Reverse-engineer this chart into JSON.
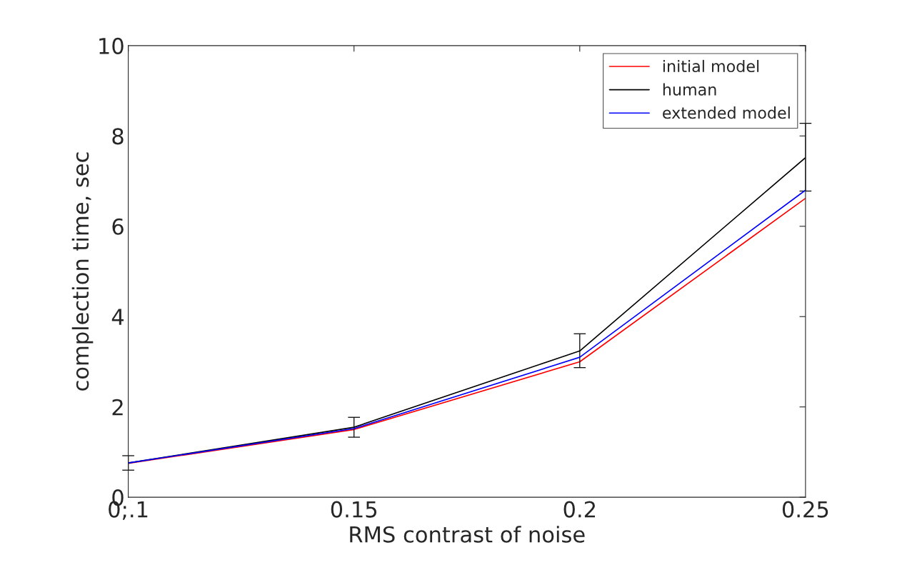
{
  "chart_data": {
    "type": "line",
    "xlabel": "RMS contrast of noise",
    "ylabel": "complection time, sec",
    "categories": [
      "0;.1",
      "0.15",
      "0.2",
      "0.25"
    ],
    "series": [
      {
        "name": "initial model",
        "color": "#ff0000",
        "values": [
          0.75,
          1.5,
          3.0,
          6.62
        ]
      },
      {
        "name": "human",
        "color": "#000000",
        "values": [
          0.76,
          1.55,
          3.24,
          7.52
        ],
        "errors": [
          [
            0.6,
            0.92
          ],
          [
            1.33,
            1.77
          ],
          [
            2.87,
            3.62
          ],
          [
            6.78,
            8.28
          ]
        ]
      },
      {
        "name": "extended model",
        "color": "#0000ff",
        "values": [
          0.76,
          1.52,
          3.1,
          6.8
        ]
      }
    ],
    "ylim": [
      0,
      10
    ],
    "yticks": [
      0,
      2,
      4,
      6,
      8,
      10
    ],
    "grid": false,
    "legend": "top right"
  }
}
